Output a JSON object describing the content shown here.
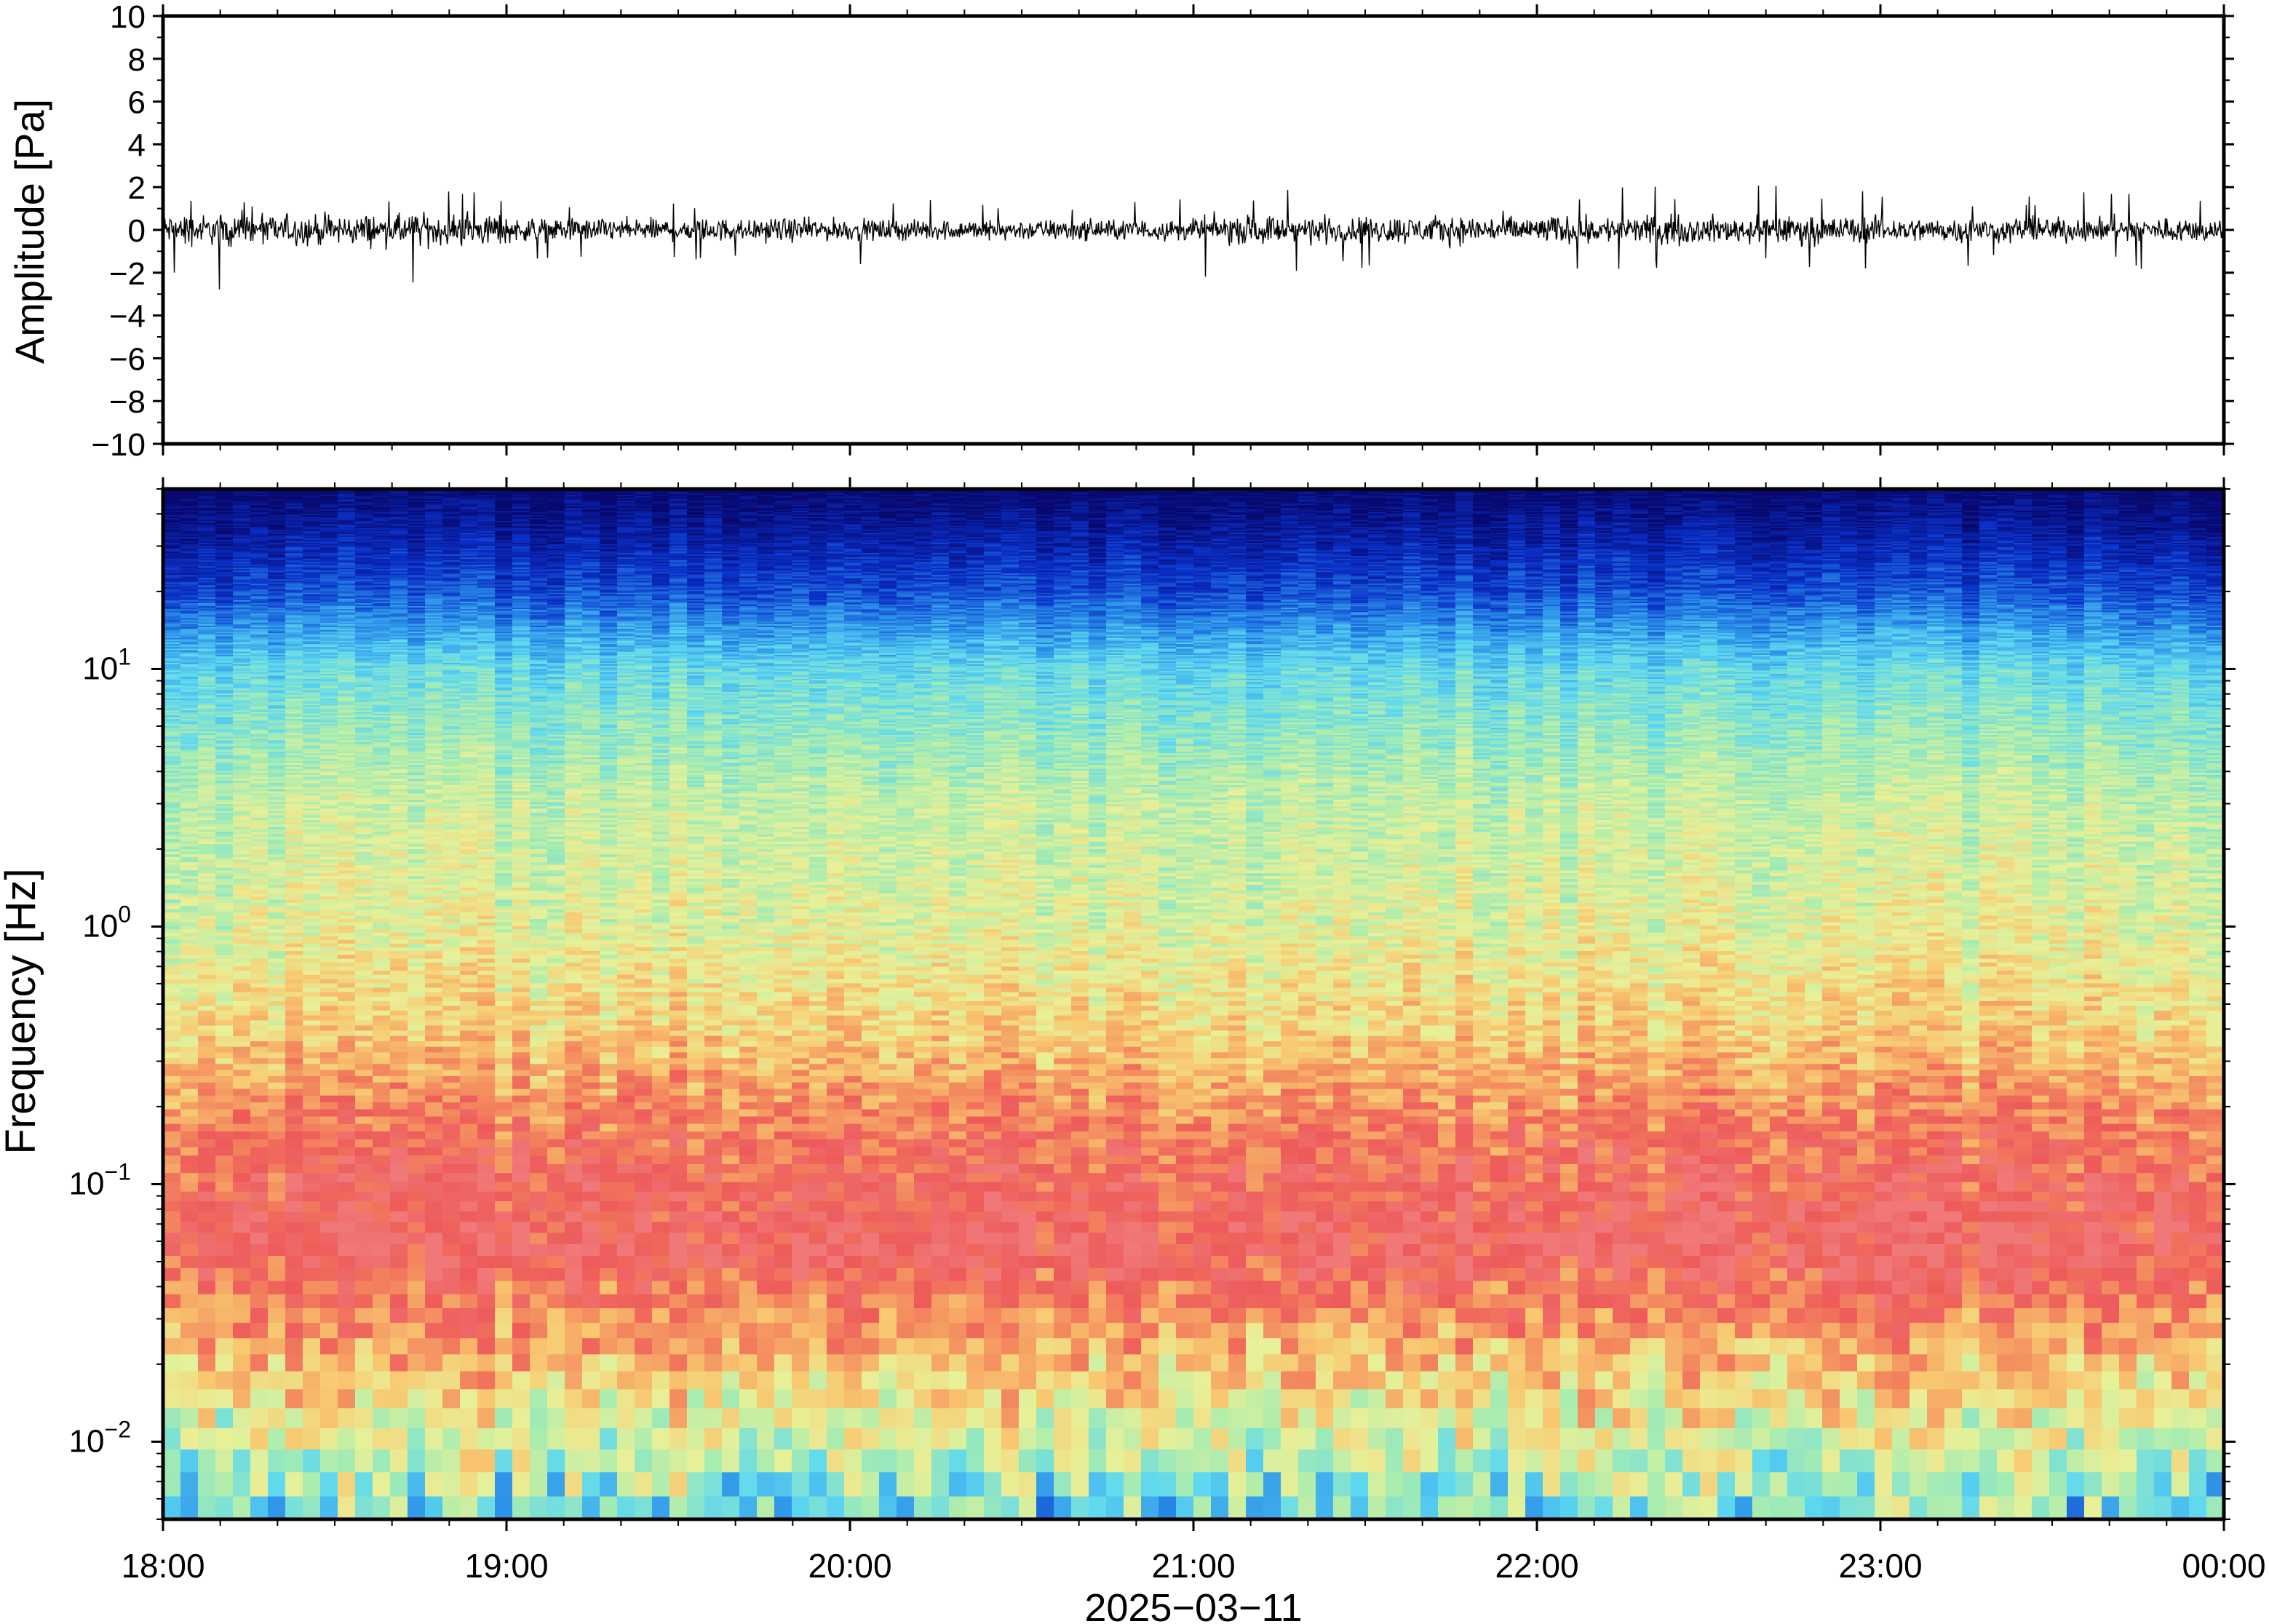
{
  "chart_data": [
    {
      "type": "line",
      "ylabel": "Amplitude [Pa]",
      "ylim": [
        -10,
        10
      ],
      "yticks": [
        "10",
        "8",
        "6",
        "4",
        "2",
        "0",
        "−2",
        "−4",
        "−6",
        "−8",
        "−10"
      ],
      "x_range": [
        "2025-03-11 18:00",
        "2025-03-12 00:00"
      ],
      "series": [
        {
          "values_description_is_not_printed": null,
          "envelope_hourly": [
            {
              "time": "18:00",
              "min": -2.8,
              "max": 1.8
            },
            {
              "time": "19:00",
              "min": -1.8,
              "max": 1.6
            },
            {
              "time": "20:00",
              "min": -1.6,
              "max": 1.5
            },
            {
              "time": "21:00",
              "min": -2.3,
              "max": 1.9
            },
            {
              "time": "22:00",
              "min": -2.0,
              "max": 2.1
            },
            {
              "time": "23:00",
              "min": -1.9,
              "max": 1.8
            }
          ]
        }
      ],
      "color": "#000000"
    },
    {
      "type": "heatmap",
      "ylabel": "Frequency [Hz]",
      "yscale": "log",
      "ylim": [
        0.005,
        50
      ],
      "yticks": [
        {
          "base": "10",
          "exp": "1",
          "value": 10
        },
        {
          "base": "10",
          "exp": "0",
          "value": 1
        },
        {
          "base": "10",
          "exp": "−1",
          "value": 0.1
        },
        {
          "base": "10",
          "exp": "−2",
          "value": 0.01
        }
      ],
      "colormap": [
        "#08086e",
        "#0a30c8",
        "#2a8ee8",
        "#5ed8f0",
        "#a8ecb0",
        "#e8f098",
        "#f8c870",
        "#f49060",
        "#ee5a5a",
        "#f07878"
      ],
      "power_profile_by_frequency": [
        {
          "hz": 50,
          "level": 0.0
        },
        {
          "hz": 20,
          "level": 0.15
        },
        {
          "hz": 10,
          "level": 0.35
        },
        {
          "hz": 3,
          "level": 0.5
        },
        {
          "hz": 1,
          "level": 0.55
        },
        {
          "hz": 0.4,
          "level": 0.65
        },
        {
          "hz": 0.15,
          "level": 0.85
        },
        {
          "hz": 0.06,
          "level": 0.95
        },
        {
          "hz": 0.025,
          "level": 0.72
        },
        {
          "hz": 0.012,
          "level": 0.55
        },
        {
          "hz": 0.006,
          "level": 0.38
        }
      ]
    }
  ],
  "x_axis": {
    "ticks": [
      "18:00",
      "19:00",
      "20:00",
      "21:00",
      "22:00",
      "23:00",
      "00:00"
    ],
    "date_label": "2025−03−11"
  }
}
